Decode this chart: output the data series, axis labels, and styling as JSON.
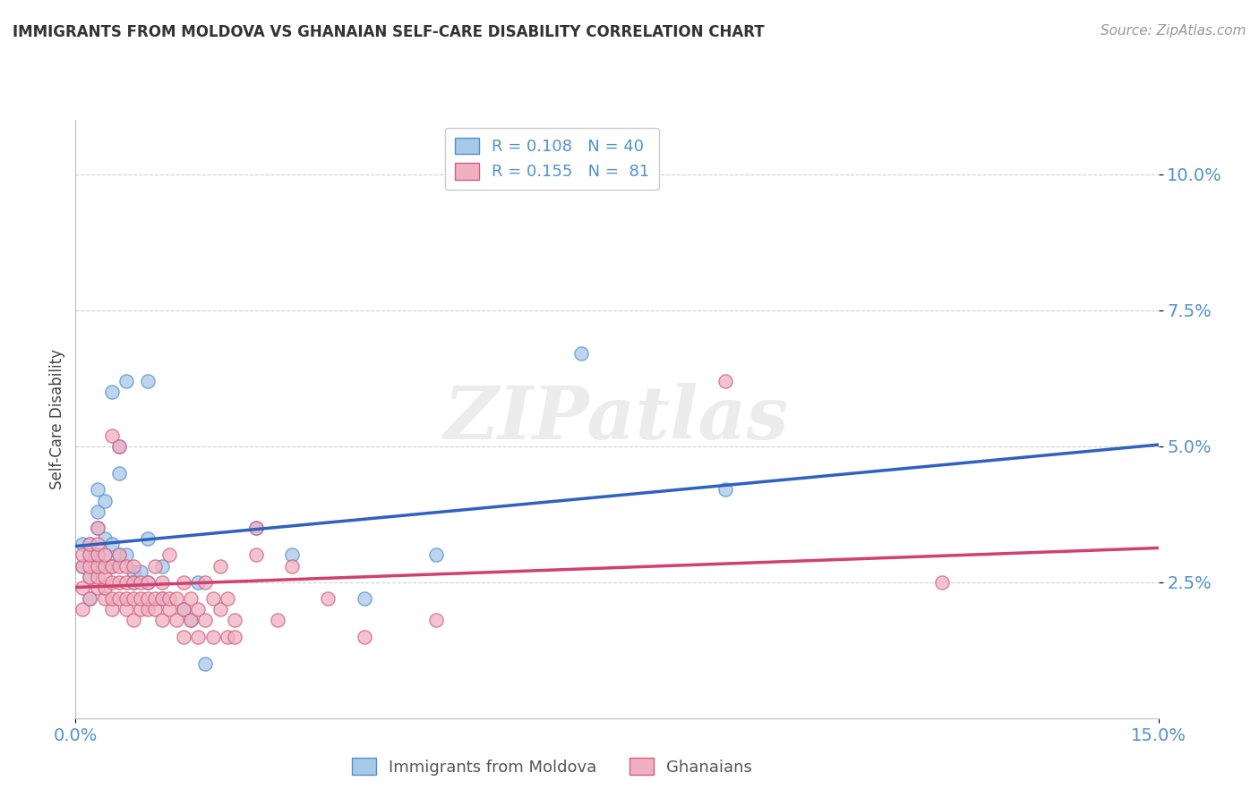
{
  "title": "IMMIGRANTS FROM MOLDOVA VS GHANAIAN SELF-CARE DISABILITY CORRELATION CHART",
  "source": "Source: ZipAtlas.com",
  "ylabel": "Self-Care Disability",
  "xlim": [
    0.0,
    0.15
  ],
  "ylim": [
    0.0,
    0.11
  ],
  "yticks": [
    0.025,
    0.05,
    0.075,
    0.1
  ],
  "ytick_labels": [
    "2.5%",
    "5.0%",
    "7.5%",
    "10.0%"
  ],
  "xticks": [
    0.0,
    0.15
  ],
  "xtick_labels": [
    "0.0%",
    "15.0%"
  ],
  "legend_r_labels": [
    "R = 0.108   N = 40",
    "R = 0.155   N =  81"
  ],
  "legend_labels": [
    "Immigrants from Moldova",
    "Ghanaians"
  ],
  "moldova_color": "#a8c8e8",
  "ghana_color": "#f0b0c0",
  "moldova_edge": "#5090d0",
  "ghana_edge": "#d06080",
  "trendline_moldova_color": "#3060c0",
  "trendline_ghana_color": "#d04070",
  "background_color": "#ffffff",
  "watermark": "ZIPatlas",
  "grid_color": "#cccccc",
  "label_color": "#5090d0",
  "moldova_scatter": [
    [
      0.001,
      0.032
    ],
    [
      0.001,
      0.028
    ],
    [
      0.002,
      0.03
    ],
    [
      0.002,
      0.026
    ],
    [
      0.002,
      0.022
    ],
    [
      0.002,
      0.032
    ],
    [
      0.003,
      0.028
    ],
    [
      0.003,
      0.03
    ],
    [
      0.003,
      0.035
    ],
    [
      0.003,
      0.038
    ],
    [
      0.003,
      0.042
    ],
    [
      0.004,
      0.03
    ],
    [
      0.004,
      0.033
    ],
    [
      0.004,
      0.04
    ],
    [
      0.005,
      0.06
    ],
    [
      0.005,
      0.032
    ],
    [
      0.005,
      0.028
    ],
    [
      0.006,
      0.045
    ],
    [
      0.006,
      0.05
    ],
    [
      0.006,
      0.03
    ],
    [
      0.007,
      0.062
    ],
    [
      0.007,
      0.03
    ],
    [
      0.008,
      0.027
    ],
    [
      0.008,
      0.025
    ],
    [
      0.009,
      0.027
    ],
    [
      0.01,
      0.025
    ],
    [
      0.01,
      0.033
    ],
    [
      0.012,
      0.028
    ],
    [
      0.012,
      0.022
    ],
    [
      0.015,
      0.02
    ],
    [
      0.016,
      0.018
    ],
    [
      0.017,
      0.025
    ],
    [
      0.018,
      0.01
    ],
    [
      0.025,
      0.035
    ],
    [
      0.03,
      0.03
    ],
    [
      0.04,
      0.022
    ],
    [
      0.05,
      0.03
    ],
    [
      0.07,
      0.067
    ],
    [
      0.09,
      0.042
    ],
    [
      0.01,
      0.062
    ]
  ],
  "ghana_scatter": [
    [
      0.001,
      0.02
    ],
    [
      0.001,
      0.028
    ],
    [
      0.001,
      0.03
    ],
    [
      0.001,
      0.024
    ],
    [
      0.002,
      0.022
    ],
    [
      0.002,
      0.026
    ],
    [
      0.002,
      0.028
    ],
    [
      0.002,
      0.03
    ],
    [
      0.002,
      0.032
    ],
    [
      0.003,
      0.024
    ],
    [
      0.003,
      0.026
    ],
    [
      0.003,
      0.028
    ],
    [
      0.003,
      0.03
    ],
    [
      0.003,
      0.032
    ],
    [
      0.003,
      0.035
    ],
    [
      0.004,
      0.022
    ],
    [
      0.004,
      0.024
    ],
    [
      0.004,
      0.026
    ],
    [
      0.004,
      0.028
    ],
    [
      0.004,
      0.03
    ],
    [
      0.005,
      0.02
    ],
    [
      0.005,
      0.022
    ],
    [
      0.005,
      0.025
    ],
    [
      0.005,
      0.028
    ],
    [
      0.005,
      0.052
    ],
    [
      0.006,
      0.022
    ],
    [
      0.006,
      0.025
    ],
    [
      0.006,
      0.028
    ],
    [
      0.006,
      0.03
    ],
    [
      0.006,
      0.05
    ],
    [
      0.007,
      0.02
    ],
    [
      0.007,
      0.022
    ],
    [
      0.007,
      0.025
    ],
    [
      0.007,
      0.028
    ],
    [
      0.008,
      0.018
    ],
    [
      0.008,
      0.022
    ],
    [
      0.008,
      0.025
    ],
    [
      0.008,
      0.028
    ],
    [
      0.009,
      0.02
    ],
    [
      0.009,
      0.022
    ],
    [
      0.009,
      0.025
    ],
    [
      0.01,
      0.02
    ],
    [
      0.01,
      0.022
    ],
    [
      0.01,
      0.025
    ],
    [
      0.011,
      0.02
    ],
    [
      0.011,
      0.022
    ],
    [
      0.011,
      0.028
    ],
    [
      0.012,
      0.018
    ],
    [
      0.012,
      0.022
    ],
    [
      0.012,
      0.025
    ],
    [
      0.013,
      0.02
    ],
    [
      0.013,
      0.022
    ],
    [
      0.013,
      0.03
    ],
    [
      0.014,
      0.018
    ],
    [
      0.014,
      0.022
    ],
    [
      0.015,
      0.015
    ],
    [
      0.015,
      0.02
    ],
    [
      0.015,
      0.025
    ],
    [
      0.016,
      0.018
    ],
    [
      0.016,
      0.022
    ],
    [
      0.017,
      0.015
    ],
    [
      0.017,
      0.02
    ],
    [
      0.018,
      0.018
    ],
    [
      0.018,
      0.025
    ],
    [
      0.019,
      0.015
    ],
    [
      0.019,
      0.022
    ],
    [
      0.02,
      0.02
    ],
    [
      0.02,
      0.028
    ],
    [
      0.021,
      0.015
    ],
    [
      0.021,
      0.022
    ],
    [
      0.022,
      0.018
    ],
    [
      0.025,
      0.03
    ],
    [
      0.025,
      0.035
    ],
    [
      0.03,
      0.028
    ],
    [
      0.035,
      0.022
    ],
    [
      0.04,
      0.015
    ],
    [
      0.05,
      0.018
    ],
    [
      0.09,
      0.062
    ],
    [
      0.12,
      0.025
    ],
    [
      0.022,
      0.015
    ],
    [
      0.028,
      0.018
    ]
  ]
}
